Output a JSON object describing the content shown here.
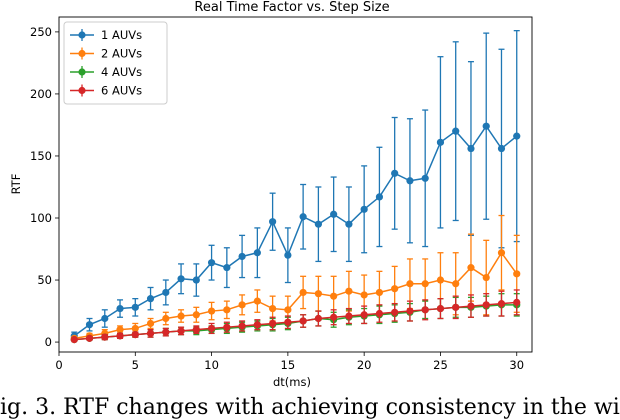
{
  "chart_data": {
    "type": "line",
    "title": "Real Time Factor vs. Step Size",
    "xlabel": "dt(ms)",
    "ylabel": "RTF",
    "xlim": [
      0,
      31
    ],
    "ylim": [
      -8,
      262
    ],
    "xticks": [
      0,
      5,
      10,
      15,
      20,
      25,
      30
    ],
    "yticks": [
      0,
      50,
      100,
      150,
      200,
      250
    ],
    "grid": false,
    "legend_position": "upper-left",
    "x": [
      1,
      2,
      3,
      4,
      5,
      6,
      7,
      8,
      9,
      10,
      11,
      12,
      13,
      14,
      15,
      16,
      17,
      18,
      19,
      20,
      21,
      22,
      23,
      24,
      25,
      26,
      27,
      28,
      29,
      30
    ],
    "series": [
      {
        "name": "1 AUVs",
        "color": "#1f77b4",
        "values": [
          5,
          14,
          19,
          27,
          28,
          35,
          40,
          51,
          50,
          64,
          60,
          69,
          72,
          97,
          70,
          101,
          95,
          103,
          95,
          107,
          117,
          136,
          130,
          132,
          161,
          170,
          156,
          174,
          156,
          166
        ],
        "errors": [
          3,
          5,
          7,
          7,
          7,
          9,
          10,
          12,
          13,
          14,
          16,
          17,
          20,
          23,
          22,
          26,
          30,
          30,
          30,
          35,
          40,
          45,
          50,
          55,
          69,
          72,
          70,
          75,
          80,
          85
        ]
      },
      {
        "name": "2 AUVs",
        "color": "#ff7f0e",
        "values": [
          3,
          5,
          7,
          10,
          11,
          15,
          19,
          21,
          22,
          25,
          26,
          30,
          33,
          27,
          26,
          40,
          39,
          37,
          41,
          38,
          40,
          43,
          47,
          47,
          50,
          47,
          60,
          52,
          72,
          55
        ],
        "errors": [
          1,
          2,
          3,
          3,
          4,
          4,
          5,
          5,
          6,
          7,
          7,
          8,
          9,
          10,
          11,
          13,
          14,
          16,
          16,
          16,
          17,
          18,
          20,
          20,
          22,
          25,
          27,
          30,
          30,
          31
        ]
      },
      {
        "name": "4 AUVs",
        "color": "#2ca02c",
        "values": [
          2,
          3,
          4,
          5,
          6,
          7,
          8,
          9,
          9,
          10,
          11,
          12,
          13,
          14,
          15,
          17,
          19,
          18,
          20,
          21,
          22,
          23,
          24,
          26,
          27,
          28,
          28,
          29,
          30,
          30
        ],
        "errors": [
          1,
          1,
          2,
          2,
          2,
          3,
          3,
          3,
          3,
          3,
          4,
          4,
          4,
          5,
          5,
          5,
          6,
          6,
          6,
          6,
          7,
          7,
          7,
          7,
          8,
          8,
          8,
          8,
          9,
          9
        ]
      },
      {
        "name": "6 AUVs",
        "color": "#d62728",
        "values": [
          2,
          3,
          4,
          5,
          6,
          7,
          8,
          9,
          10,
          11,
          12,
          13,
          14,
          15,
          16,
          17,
          19,
          20,
          21,
          22,
          23,
          24,
          25,
          26,
          27,
          28,
          29,
          30,
          31,
          32
        ],
        "errors": [
          1,
          1,
          2,
          2,
          2,
          3,
          3,
          3,
          3,
          4,
          4,
          4,
          4,
          5,
          5,
          5,
          6,
          6,
          6,
          7,
          7,
          7,
          8,
          8,
          8,
          9,
          9,
          9,
          10,
          10
        ]
      }
    ]
  },
  "caption": {
    "text": "ig. 3.   RTF changes with achieving consistency in the wi"
  }
}
